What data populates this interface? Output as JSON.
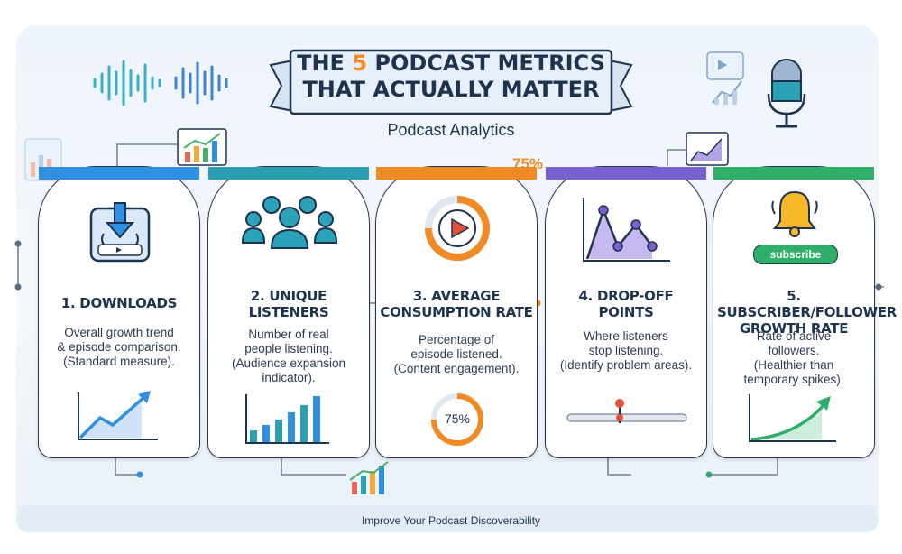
{
  "header": {
    "title_line1_before": "THE ",
    "title_line1_accent": "5",
    "title_line1_after": " PODCAST METRICS",
    "title_line2": "THAT ACTUALLY MATTER",
    "subtitle": "Podcast Analytics",
    "floating_percent": "75%"
  },
  "cards": [
    {
      "title": "1. DOWNLOADS",
      "desc": [
        "Overall growth trend",
        "& episode comparison.",
        "(Standard measure)."
      ],
      "accent": "#2f8fe0"
    },
    {
      "title_lines": [
        "2. UNIQUE",
        "LISTENERS"
      ],
      "desc": [
        "Number of real",
        "people listening.",
        "(Audience expansion",
        "indicator)."
      ],
      "accent": "#2a9fb0"
    },
    {
      "title_lines": [
        "3. AVERAGE",
        "CONSUMPTION RATE"
      ],
      "desc": [
        "Percentage of",
        "episode listened.",
        "(Content engagement)."
      ],
      "accent": "#f08a24",
      "gauge_label": "75%"
    },
    {
      "title_lines": [
        "4. DROP-OFF",
        "POINTS"
      ],
      "desc": [
        "Where listeners",
        "stop listening.",
        "(Identify problem areas)."
      ],
      "accent": "#7a5fd0"
    },
    {
      "title_lines": [
        "5. SUBSCRIBER/FOLLOWER",
        "GROWTH RATE"
      ],
      "desc": [
        "Rate of active",
        "followers.",
        "(Healthier than",
        "temporary spikes)."
      ],
      "accent": "#2fae6a",
      "badge": "subscribe"
    }
  ],
  "footer": "Improve Your Podcast Discoverability",
  "colors": {
    "navy": "#1d3350",
    "orange": "#f28c1e",
    "blue": "#2f8fe0",
    "teal": "#2a9fb0",
    "purple": "#7a5fd0",
    "green": "#2fae6a"
  }
}
